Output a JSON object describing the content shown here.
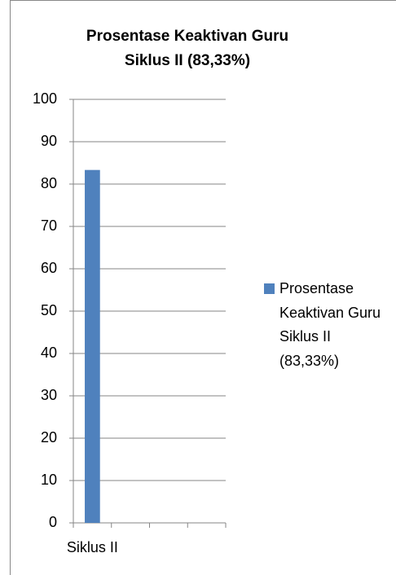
{
  "chart_data": {
    "type": "bar",
    "title": "Prosentase Keaktivan Guru Siklus II (83,33%)",
    "categories": [
      "Siklus II",
      null,
      null,
      null
    ],
    "series": [
      {
        "name": "Prosentase Keaktivan Guru Siklus II (83,33%)",
        "color": "#4f81bd",
        "values": [
          83.33,
          null,
          null,
          null
        ]
      }
    ],
    "ylim": [
      0,
      100
    ],
    "yticks": [
      0,
      10,
      20,
      30,
      40,
      50,
      60,
      70,
      80,
      90,
      100
    ],
    "grid": true,
    "legend": "right"
  }
}
